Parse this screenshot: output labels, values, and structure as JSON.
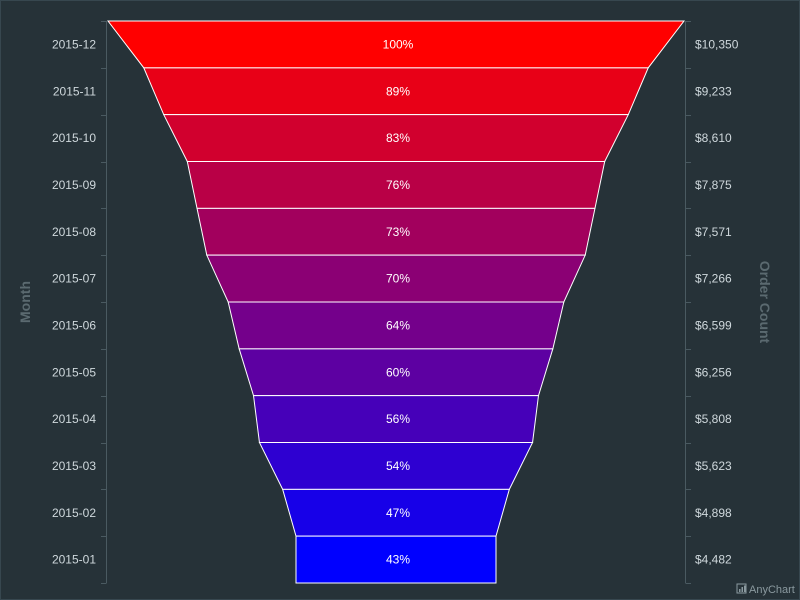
{
  "chart_data": {
    "type": "bar",
    "subtype": "funnel",
    "orientation": "horizontal",
    "categories": [
      "2015-12",
      "2015-11",
      "2015-10",
      "2015-09",
      "2015-08",
      "2015-07",
      "2015-06",
      "2015-05",
      "2015-04",
      "2015-03",
      "2015-02",
      "2015-01"
    ],
    "values": [
      10350,
      9233,
      8610,
      7875,
      7571,
      7266,
      6599,
      6256,
      5808,
      5623,
      4898,
      4482
    ],
    "value_labels": [
      "$10,350",
      "$9,233",
      "$8,610",
      "$7,875",
      "$7,571",
      "$7,266",
      "$6,599",
      "$6,256",
      "$5,808",
      "$5,623",
      "$4,898",
      "$4,482"
    ],
    "percent_labels": [
      "100%",
      "89%",
      "83%",
      "76%",
      "73%",
      "70%",
      "64%",
      "60%",
      "56%",
      "54%",
      "47%",
      "43%"
    ],
    "xlabel": "Month",
    "ylabel": "Order Count",
    "color_start": "#ff0000",
    "color_end": "#0000ff",
    "grid": false,
    "legend": "none"
  },
  "credit": "AnyChart"
}
